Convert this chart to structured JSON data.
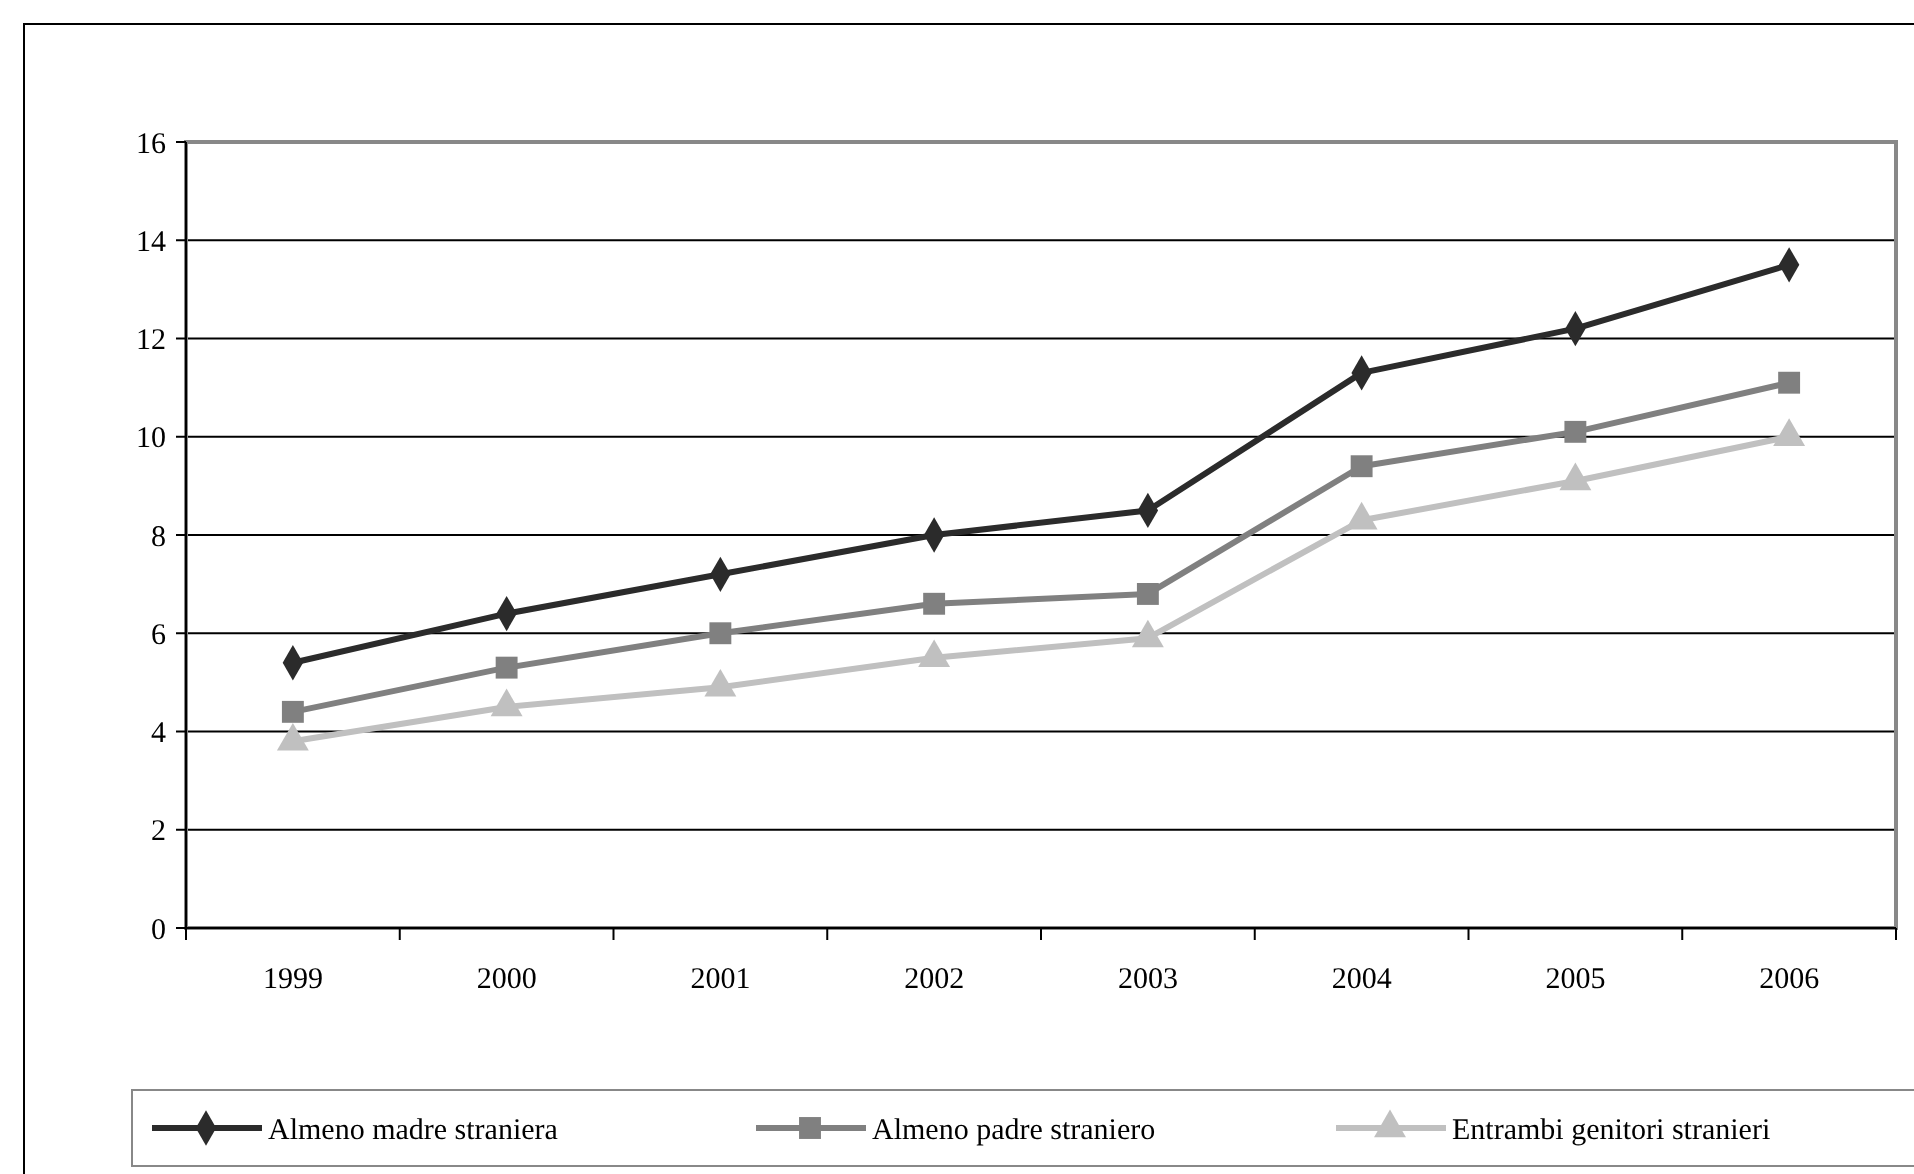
{
  "chart_data": {
    "type": "line",
    "categories": [
      "1999",
      "2000",
      "2001",
      "2002",
      "2003",
      "2004",
      "2005",
      "2006"
    ],
    "series": [
      {
        "name": "Almeno madre straniera",
        "color": "#2b2b2b",
        "marker": "diamond",
        "values": [
          5.4,
          6.4,
          7.2,
          8.0,
          8.5,
          11.3,
          12.2,
          13.5
        ]
      },
      {
        "name": "Almeno padre straniero",
        "color": "#808080",
        "marker": "square",
        "values": [
          4.4,
          5.3,
          6.0,
          6.6,
          6.8,
          9.4,
          10.1,
          11.1
        ]
      },
      {
        "name": "Entrambi genitori stranieri",
        "color": "#c0c0c0",
        "marker": "triangle",
        "values": [
          3.8,
          4.5,
          4.9,
          5.5,
          5.9,
          8.3,
          9.1,
          10.0
        ]
      }
    ],
    "ylim": [
      0,
      16
    ],
    "yticks": [
      0,
      2,
      4,
      6,
      8,
      10,
      12,
      14,
      16
    ],
    "grid": "y",
    "legend": "bottom"
  }
}
